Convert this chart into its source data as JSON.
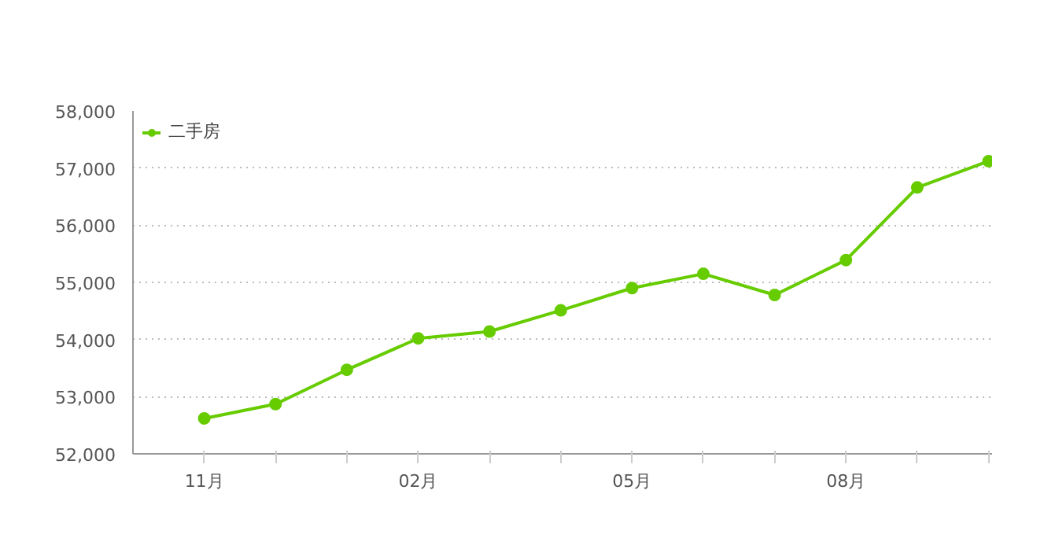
{
  "chart_data": {
    "type": "line",
    "categories": [
      "11月",
      null,
      null,
      "02月",
      null,
      null,
      "05月",
      null,
      null,
      "08月",
      null,
      null
    ],
    "series": [
      {
        "name": "二手房",
        "color": "#66cc00",
        "values": [
          52620,
          52870,
          53470,
          54020,
          54140,
          54510,
          54900,
          55150,
          54780,
          55390,
          56660,
          57120
        ]
      }
    ],
    "ylim": [
      52000,
      58000
    ],
    "yticks": [
      {
        "value": 52000,
        "label": "52,000"
      },
      {
        "value": 53000,
        "label": "53,000"
      },
      {
        "value": 54000,
        "label": "54,000"
      },
      {
        "value": 55000,
        "label": "55,000"
      },
      {
        "value": 56000,
        "label": "56,000"
      },
      {
        "value": 57000,
        "label": "57,000"
      },
      {
        "value": 58000,
        "label": "58,000"
      }
    ],
    "grid": "y",
    "legend": "top left",
    "marker": "circle",
    "line_style": "solid"
  }
}
